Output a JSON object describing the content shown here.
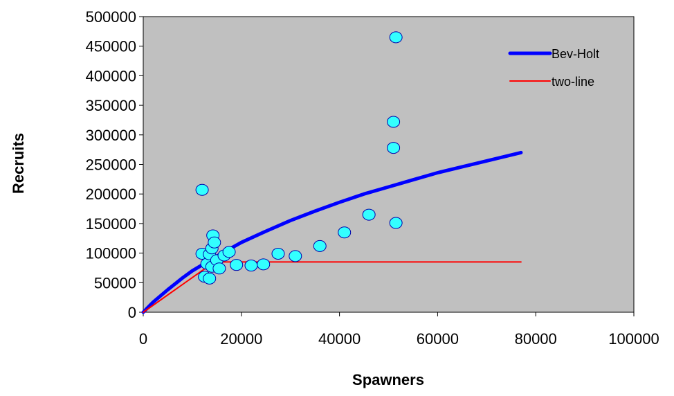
{
  "chart_data": {
    "type": "scatter",
    "xlabel": "Spawners",
    "ylabel": "Recruits",
    "xlim": [
      0,
      100000
    ],
    "ylim": [
      0,
      500000
    ],
    "x_ticks": [
      0,
      20000,
      40000,
      60000,
      80000,
      100000
    ],
    "y_ticks": [
      0,
      50000,
      100000,
      150000,
      200000,
      250000,
      300000,
      350000,
      400000,
      450000,
      500000
    ],
    "grid": false,
    "plot_background": "#c0c0c0",
    "legend_position": "top-right",
    "series": [
      {
        "kind": "points",
        "color": "#33ffff",
        "points": [
          [
            12000,
            207000
          ],
          [
            12000,
            99000
          ],
          [
            12500,
            60000
          ],
          [
            13000,
            82000
          ],
          [
            13500,
            57000
          ],
          [
            13500,
            98000
          ],
          [
            14000,
            77000
          ],
          [
            14000,
            108000
          ],
          [
            14200,
            130000
          ],
          [
            14500,
            118000
          ],
          [
            15000,
            88000
          ],
          [
            15500,
            74000
          ],
          [
            16500,
            96000
          ],
          [
            17500,
            102000
          ],
          [
            19000,
            80000
          ],
          [
            22000,
            79000
          ],
          [
            24500,
            81000
          ],
          [
            27500,
            99000
          ],
          [
            31000,
            95000
          ],
          [
            36000,
            112000
          ],
          [
            41000,
            135000
          ],
          [
            46000,
            165000
          ],
          [
            51000,
            278000
          ],
          [
            51000,
            322000
          ],
          [
            51500,
            151000
          ],
          [
            51500,
            465000
          ]
        ]
      },
      {
        "name": "Bev-Holt",
        "kind": "line",
        "color": "#0000ff",
        "points": [
          [
            0,
            0
          ],
          [
            2000,
            17000
          ],
          [
            5000,
            38000
          ],
          [
            8000,
            58000
          ],
          [
            10000,
            70000
          ],
          [
            12000,
            80000
          ],
          [
            15000,
            95000
          ],
          [
            20000,
            118000
          ],
          [
            25000,
            137000
          ],
          [
            30000,
            155000
          ],
          [
            35000,
            171000
          ],
          [
            40000,
            186000
          ],
          [
            45000,
            200000
          ],
          [
            50000,
            212000
          ],
          [
            55000,
            224000
          ],
          [
            60000,
            236000
          ],
          [
            65000,
            246000
          ],
          [
            70000,
            256000
          ],
          [
            77000,
            270000
          ]
        ]
      },
      {
        "name": "two-line",
        "kind": "line",
        "color": "#ff0000",
        "points": [
          [
            0,
            0
          ],
          [
            14500,
            85000
          ],
          [
            77000,
            85000
          ]
        ]
      }
    ]
  }
}
